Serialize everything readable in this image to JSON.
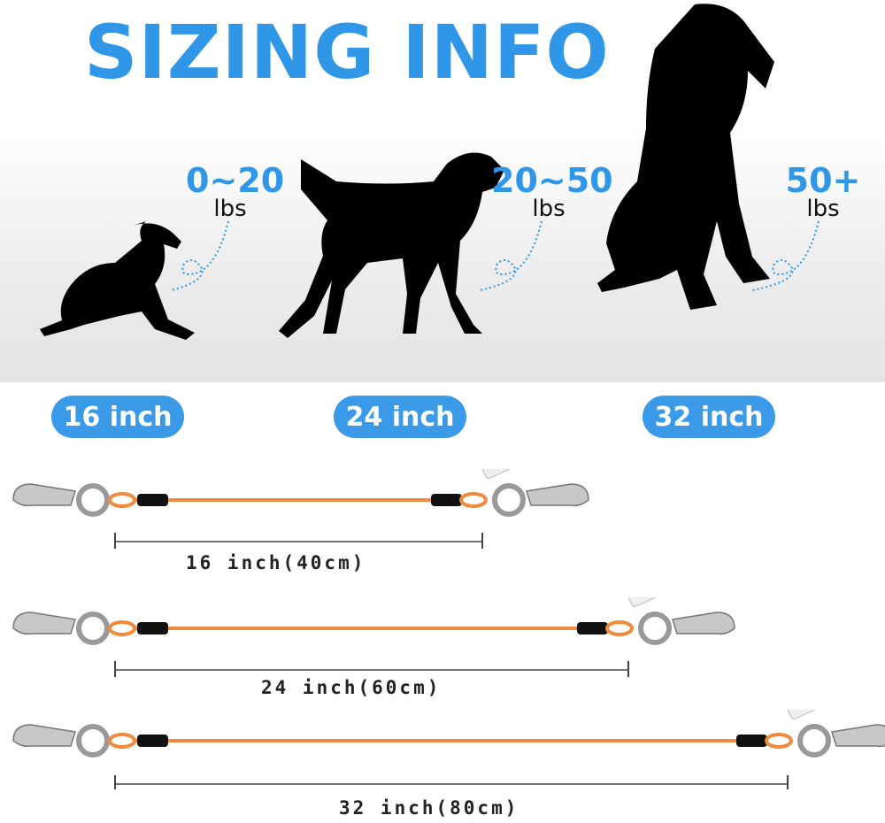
{
  "title": "SIZING INFO",
  "colors": {
    "accent": "#2f96e8",
    "cable": "#f08a3c"
  },
  "sizes": [
    {
      "weight": "0~20",
      "unit": "lbs",
      "badge": "16 inch",
      "length": "16 inch(40cm)"
    },
    {
      "weight": "20~50",
      "unit": "lbs",
      "badge": "24 inch",
      "length": "24 inch(60cm)"
    },
    {
      "weight": "50+",
      "unit": "lbs",
      "badge": "32 inch",
      "length": "32 inch(80cm)"
    }
  ]
}
